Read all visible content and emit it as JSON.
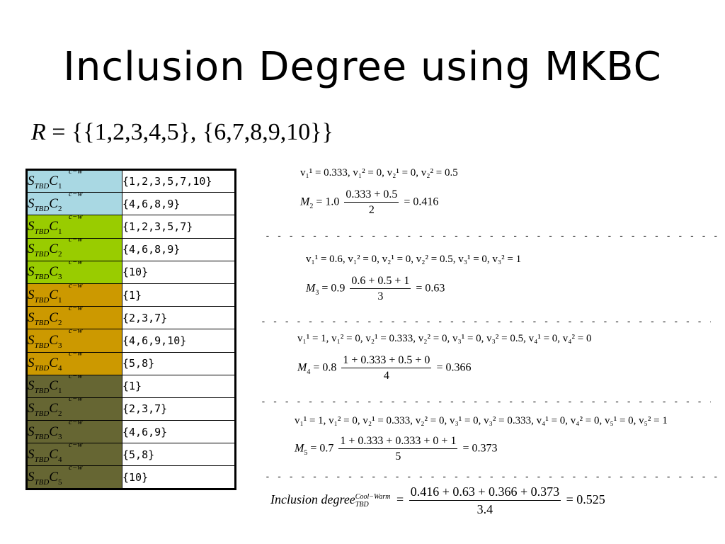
{
  "title": "Inclusion Degree using MKBC",
  "relation": {
    "symbol": "R",
    "rest": " = {{1,2,3,4,5}, {6,7,8,9,10}}"
  },
  "colors": {
    "lightblue": "#a9d8e3",
    "green": "#99cc00",
    "orange": "#cc9900",
    "olive": "#666633"
  },
  "table": {
    "label_base": "S",
    "label_sub": "TBD",
    "label_c": "C",
    "label_sup": "c−w",
    "rows": [
      {
        "index": "1",
        "value": "{1,2,3,5,7,10}",
        "color": "#a9d8e3"
      },
      {
        "index": "2",
        "value": "{4,6,8,9}",
        "color": "#a9d8e3"
      },
      {
        "index": "1",
        "value": "{1,2,3,5,7}",
        "color": "#99cc00"
      },
      {
        "index": "2",
        "value": "{4,6,8,9}",
        "color": "#99cc00"
      },
      {
        "index": "3",
        "value": "{10}",
        "color": "#99cc00"
      },
      {
        "index": "1",
        "value": "{1}",
        "color": "#cc9900"
      },
      {
        "index": "2",
        "value": "{2,3,7}",
        "color": "#cc9900"
      },
      {
        "index": "3",
        "value": "{4,6,9,10}",
        "color": "#cc9900"
      },
      {
        "index": "4",
        "value": "{5,8}",
        "color": "#cc9900"
      },
      {
        "index": "1",
        "value": "{1}",
        "color": "#666633"
      },
      {
        "index": "2",
        "value": "{2,3,7}",
        "color": "#666633"
      },
      {
        "index": "3",
        "value": "{4,6,9}",
        "color": "#666633"
      },
      {
        "index": "4",
        "value": "{5,8}",
        "color": "#666633"
      },
      {
        "index": "5",
        "value": "{10}",
        "color": "#666633"
      }
    ]
  },
  "blocks": {
    "m2": {
      "v_line": "v₁¹ = 0.333, v₁² = 0, v₂¹ = 0, v₂² = 0.5",
      "lhs": "M",
      "lhs_sub": "2",
      "coef": "= 1.0",
      "num": "0.333 + 0.5",
      "den": "2",
      "result": "= 0.416"
    },
    "m3": {
      "v_line": "v₁¹ = 0.6, v₁² = 0, v₂¹ = 0, v₂² = 0.5, v₃¹ = 0, v₃² = 1",
      "lhs": "M",
      "lhs_sub": "3",
      "coef": "= 0.9",
      "num": "0.6 + 0.5 + 1",
      "den": "3",
      "result": "= 0.63"
    },
    "m4": {
      "v_line": "v₁¹ = 1, v₁² = 0, v₂¹ = 0.333, v₂² = 0, v₃¹ = 0, v₃² = 0.5, v₄¹ = 0, v₄² = 0",
      "lhs": "M",
      "lhs_sub": "4",
      "coef": "= 0.8",
      "num": "1 + 0.333 + 0.5 + 0",
      "den": "4",
      "result": "= 0.366"
    },
    "m5": {
      "v_line": "v₁¹ = 1, v₁² = 0, v₂¹ = 0.333, v₂² = 0, v₃¹ = 0, v₃² = 0.333, v₄¹ = 0, v₄² = 0, v₅¹ = 0, v₅² = 1",
      "lhs": "M",
      "lhs_sub": "5",
      "coef": "= 0.7",
      "num": "1 + 0.333 + 0.333 + 0 + 1",
      "den": "5",
      "result": "= 0.373"
    }
  },
  "final": {
    "lhs": "Inclusion degree",
    "sup": "Cool−Warm",
    "sub": "TBD",
    "eq": "=",
    "num": "0.416 + 0.63 + 0.366 + 0.373",
    "den": "3.4",
    "result": "= 0.525"
  },
  "separator": "- - - - - - - - - - - - - - - - - - - - - - - - - - - - - - - - - - - - - - - - - - - - - - - - - - - - - - - - - - - - - - - - - - - - - - - -"
}
